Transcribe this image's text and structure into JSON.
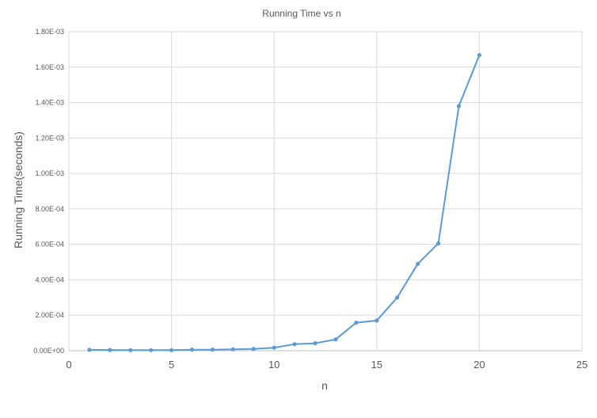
{
  "chart_data": {
    "type": "scatter",
    "title": "Running Time vs n",
    "xlabel": "n",
    "ylabel": "Running Time(seconds)",
    "xlim": [
      0,
      25
    ],
    "ylim": [
      0,
      0.0018
    ],
    "x_ticks": [
      "0",
      "5",
      "10",
      "15",
      "20",
      "25"
    ],
    "y_ticks": [
      "0.00E+00",
      "2.00E-04",
      "4.00E-04",
      "6.00E-04",
      "8.00E-04",
      "1.00E-03",
      "1.20E-03",
      "1.40E-03",
      "1.60E-03",
      "1.80E-03"
    ],
    "grid": true,
    "line_color": "#5b9bd5",
    "series": [
      {
        "x": [
          1,
          2,
          3,
          4,
          5,
          6,
          7,
          8,
          9,
          10,
          11,
          12,
          13,
          14,
          15,
          16,
          17,
          18,
          19,
          20
        ],
        "y": [
          5e-06,
          4e-06,
          3e-06,
          3e-06,
          3e-06,
          6e-06,
          6e-06,
          8e-06,
          1e-05,
          1.7e-05,
          3.7e-05,
          4.2e-05,
          6.4e-05,
          0.000158,
          0.00017,
          0.0003,
          0.00049,
          0.000605,
          0.00138,
          0.001668
        ]
      }
    ]
  }
}
